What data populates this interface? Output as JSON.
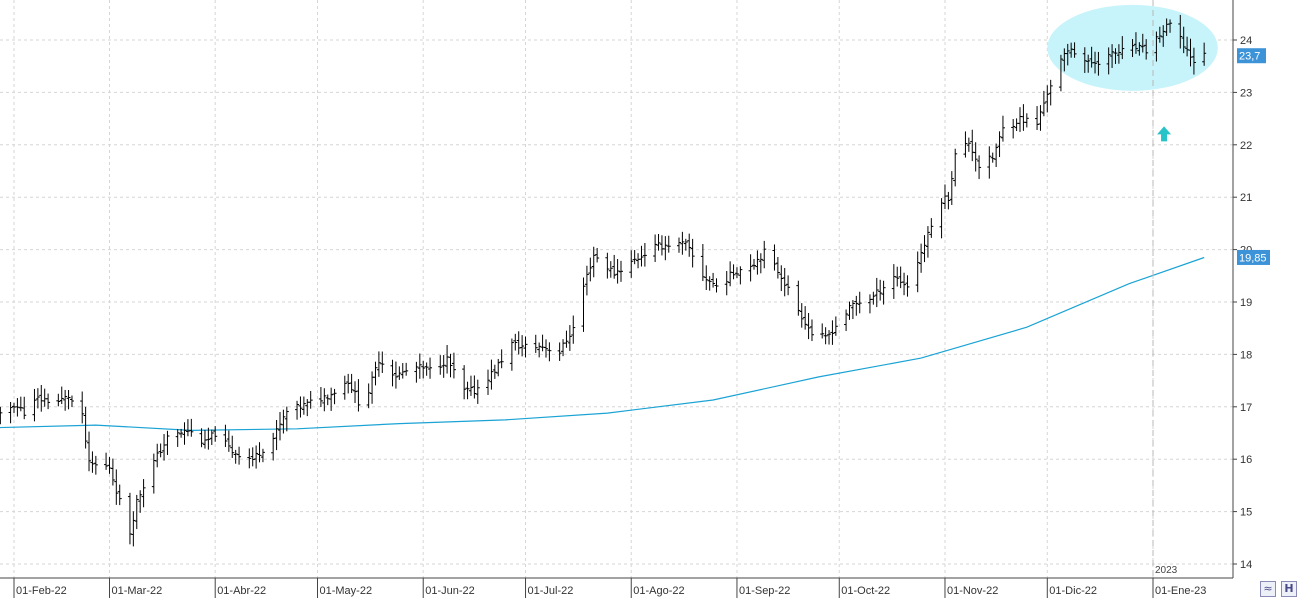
{
  "chart_data": {
    "type": "bar",
    "subtype": "ohlc",
    "ylim": [
      13.8,
      24.8
    ],
    "y_ticks": [
      14,
      15,
      16,
      17,
      18,
      19,
      20,
      21,
      22,
      23,
      24
    ],
    "x_tick_labels": [
      "01-Feb-22",
      "01-Mar-22",
      "01-Abr-22",
      "01-May-22",
      "01-Jun-22",
      "01-Jul-22",
      "01-Ago-22",
      "01-Sep-22",
      "01-Oct-22",
      "01-Nov-22",
      "01-Dic-22",
      "01-Ene-23"
    ],
    "year_marker": "2023",
    "grid": true,
    "colors": {
      "price": "#000000",
      "moving_average": "#1aa3d4",
      "highlight": "#c6f4fa",
      "arrow": "#27c3c8",
      "badge": "#3d93d8"
    },
    "price_badge": "23,7",
    "ma_badge": "19,85",
    "price_anchors": [
      [
        "2022-01-25",
        16.65
      ],
      [
        "2022-02-01",
        17.05
      ],
      [
        "2022-02-04",
        16.9
      ],
      [
        "2022-02-08",
        17.15
      ],
      [
        "2022-02-14",
        17.1
      ],
      [
        "2022-02-17",
        17.2
      ],
      [
        "2022-02-21",
        16.8
      ],
      [
        "2022-02-23",
        15.9
      ],
      [
        "2022-03-01",
        15.85
      ],
      [
        "2022-03-04",
        15.2
      ],
      [
        "2022-03-07",
        14.6
      ],
      [
        "2022-03-09",
        15.2
      ],
      [
        "2022-03-14",
        15.95
      ],
      [
        "2022-03-18",
        16.4
      ],
      [
        "2022-03-24",
        16.55
      ],
      [
        "2022-03-29",
        16.3
      ],
      [
        "2022-04-01",
        16.5
      ],
      [
        "2022-04-06",
        16.15
      ],
      [
        "2022-04-12",
        16.0
      ],
      [
        "2022-04-18",
        16.4
      ],
      [
        "2022-04-22",
        16.9
      ],
      [
        "2022-04-28",
        17.05
      ],
      [
        "2022-05-05",
        17.25
      ],
      [
        "2022-05-10",
        17.5
      ],
      [
        "2022-05-13",
        17.1
      ],
      [
        "2022-05-16",
        17.3
      ],
      [
        "2022-05-19",
        17.9
      ],
      [
        "2022-05-24",
        17.6
      ],
      [
        "2022-05-30",
        17.75
      ],
      [
        "2022-06-03",
        17.7
      ],
      [
        "2022-06-08",
        17.9
      ],
      [
        "2022-06-13",
        17.3
      ],
      [
        "2022-06-16",
        17.3
      ],
      [
        "2022-06-22",
        17.7
      ],
      [
        "2022-06-27",
        18.2
      ],
      [
        "2022-06-30",
        18.15
      ],
      [
        "2022-07-06",
        18.15
      ],
      [
        "2022-07-11",
        18.05
      ],
      [
        "2022-07-15",
        18.5
      ],
      [
        "2022-07-18",
        19.3
      ],
      [
        "2022-07-21",
        19.9
      ],
      [
        "2022-07-27",
        19.55
      ],
      [
        "2022-08-02",
        19.8
      ],
      [
        "2022-08-08",
        20.05
      ],
      [
        "2022-08-12",
        20.1
      ],
      [
        "2022-08-17",
        20.1
      ],
      [
        "2022-08-22",
        19.5
      ],
      [
        "2022-08-26",
        19.3
      ],
      [
        "2022-09-01",
        19.6
      ],
      [
        "2022-09-06",
        19.75
      ],
      [
        "2022-09-09",
        19.95
      ],
      [
        "2022-09-14",
        19.5
      ],
      [
        "2022-09-19",
        18.85
      ],
      [
        "2022-09-23",
        18.4
      ],
      [
        "2022-09-27",
        18.3
      ],
      [
        "2022-09-30",
        18.55
      ],
      [
        "2022-10-05",
        18.95
      ],
      [
        "2022-10-11",
        19.1
      ],
      [
        "2022-10-17",
        19.5
      ],
      [
        "2022-10-21",
        19.3
      ],
      [
        "2022-10-26",
        20.1
      ],
      [
        "2022-10-31",
        20.95
      ],
      [
        "2022-11-02",
        21.0
      ],
      [
        "2022-11-04",
        21.8
      ],
      [
        "2022-11-08",
        22.05
      ],
      [
        "2022-11-11",
        21.6
      ],
      [
        "2022-11-15",
        21.75
      ],
      [
        "2022-11-18",
        22.3
      ],
      [
        "2022-11-23",
        22.5
      ],
      [
        "2022-11-28",
        22.4
      ],
      [
        "2022-12-01",
        23.0
      ],
      [
        "2022-12-05",
        23.6
      ],
      [
        "2022-12-08",
        23.85
      ],
      [
        "2022-12-13",
        23.55
      ],
      [
        "2022-12-16",
        23.6
      ],
      [
        "2022-12-21",
        23.75
      ],
      [
        "2022-12-27",
        23.85
      ],
      [
        "2022-12-30",
        23.8
      ],
      [
        "2023-01-03",
        24.1
      ],
      [
        "2023-01-06",
        24.3
      ],
      [
        "2023-01-10",
        23.9
      ],
      [
        "2023-01-13",
        23.6
      ],
      [
        "2023-01-16",
        23.7
      ]
    ],
    "moving_average": [
      [
        "2022-01-25",
        16.6
      ],
      [
        "2022-02-25",
        16.65
      ],
      [
        "2022-03-25",
        16.55
      ],
      [
        "2022-04-25",
        16.58
      ],
      [
        "2022-05-25",
        16.68
      ],
      [
        "2022-06-25",
        16.75
      ],
      [
        "2022-07-25",
        16.88
      ],
      [
        "2022-08-25",
        17.13
      ],
      [
        "2022-09-25",
        17.57
      ],
      [
        "2022-10-25",
        17.93
      ],
      [
        "2022-11-25",
        18.52
      ],
      [
        "2022-12-25",
        19.35
      ],
      [
        "2023-01-16",
        19.85
      ]
    ]
  }
}
